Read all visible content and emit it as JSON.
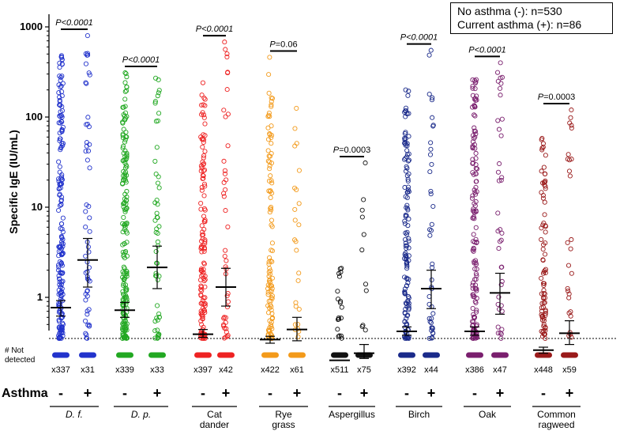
{
  "chart_data": {
    "type": "scatter",
    "ylabel": "Specific IgE (IU/mL)",
    "yscale": "log",
    "ylim": [
      0.2,
      1000
    ],
    "y_ticks": [
      {
        "value": 1000,
        "label": "1000"
      },
      {
        "value": 100,
        "label": "100"
      },
      {
        "value": 10,
        "label": "10"
      },
      {
        "value": 1,
        "label": "1"
      }
    ],
    "detection_limit": 0.35,
    "not_detected_label": "# Not detected",
    "row_label": "Asthma",
    "group_minus": "-",
    "group_plus": "+",
    "legend": {
      "line1": "No asthma (-): n=530",
      "line2": "Current asthma (+): n=86"
    },
    "series": [
      {
        "name": "D. f.",
        "italic": true,
        "color": "#2233cc",
        "p_value": "P<0.0001",
        "p_italic": true,
        "minus": {
          "not_detected": "x337",
          "median": 0.77,
          "ci": [
            0.62,
            0.92
          ],
          "max": 480,
          "detected_n": 193
        },
        "plus": {
          "not_detected": "x31",
          "median": 2.6,
          "ci": [
            1.3,
            4.5
          ],
          "max": 800,
          "detected_n": 55
        }
      },
      {
        "name": "D. p.",
        "italic": true,
        "color": "#22a822",
        "p_value": "P<0.0001",
        "p_italic": true,
        "minus": {
          "not_detected": "x339",
          "median": 0.72,
          "ci": [
            0.6,
            0.88
          ],
          "max": 310,
          "detected_n": 191
        },
        "plus": {
          "not_detected": "x33",
          "median": 2.15,
          "ci": [
            1.25,
            3.7
          ],
          "max": 270,
          "detected_n": 53
        }
      },
      {
        "name": "Cat dander",
        "italic": false,
        "color": "#ee2222",
        "p_value": "P<0.0001",
        "p_italic": true,
        "minus": {
          "not_detected": "x397",
          "median": 0.39,
          "ci": [
            0.36,
            0.44
          ],
          "max": 240,
          "detected_n": 133
        },
        "plus": {
          "not_detected": "x42",
          "median": 1.3,
          "ci": [
            0.8,
            2.1
          ],
          "max": 680,
          "detected_n": 44
        }
      },
      {
        "name": "Rye grass",
        "italic": false,
        "color": "#f39a1a",
        "p_value": "P=0.06",
        "p_italic": false,
        "minus": {
          "not_detected": "x422",
          "median": 0.34,
          "ci": [
            0.31,
            0.37
          ],
          "max": 460,
          "detected_n": 108
        },
        "plus": {
          "not_detected": "x61",
          "median": 0.44,
          "ci": [
            0.33,
            0.6
          ],
          "max": 125,
          "detected_n": 25
        }
      },
      {
        "name": "Aspergillus",
        "italic": false,
        "color": "#111111",
        "p_value": "P=0.0003",
        "p_italic": false,
        "minus": {
          "not_detected": "x511",
          "median": 0.2,
          "ci": [
            0.2,
            0.2
          ],
          "max": 2.1,
          "detected_n": 19
        },
        "plus": {
          "not_detected": "x75",
          "median": 0.24,
          "ci": [
            0.21,
            0.3
          ],
          "max": 31,
          "detected_n": 11
        }
      },
      {
        "name": "Birch",
        "italic": false,
        "color": "#1a2a8a",
        "p_value": "P<0.0001",
        "p_italic": true,
        "minus": {
          "not_detected": "x392",
          "median": 0.42,
          "ci": [
            0.38,
            0.47
          ],
          "max": 200,
          "detected_n": 138
        },
        "plus": {
          "not_detected": "x44",
          "median": 1.25,
          "ci": [
            0.75,
            2.0
          ],
          "max": 550,
          "detected_n": 42
        }
      },
      {
        "name": "Oak",
        "italic": false,
        "color": "#7a1f6e",
        "p_value": "P<0.0001",
        "p_italic": true,
        "minus": {
          "not_detected": "x386",
          "median": 0.42,
          "ci": [
            0.38,
            0.47
          ],
          "max": 260,
          "detected_n": 144
        },
        "plus": {
          "not_detected": "x47",
          "median": 1.12,
          "ci": [
            0.65,
            1.85
          ],
          "max": 400,
          "detected_n": 39
        }
      },
      {
        "name": "Common ragweed",
        "italic": false,
        "color": "#9a1a1a",
        "p_value": "P=0.0003",
        "p_italic": false,
        "minus": {
          "not_detected": "x448",
          "median": 0.26,
          "ci": [
            0.24,
            0.28
          ],
          "max": 58,
          "detected_n": 82
        },
        "plus": {
          "not_detected": "x59",
          "median": 0.4,
          "ci": [
            0.3,
            0.55
          ],
          "max": 120,
          "detected_n": 27
        }
      }
    ]
  }
}
